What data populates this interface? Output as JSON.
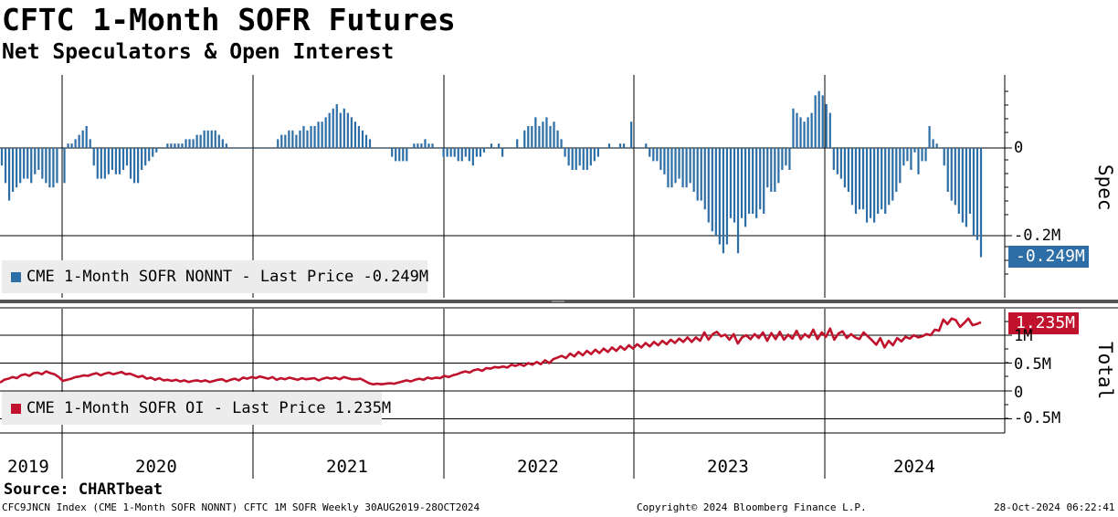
{
  "header": {
    "title": "CFTC 1-Month SOFR Futures",
    "subtitle": "Net Speculators & Open Interest"
  },
  "footer": {
    "source": "Source: CHARTbeat",
    "ticker_info": "CFC9JNCN Index (CME 1-Month SOFR NONNT) CFTC 1M SOFR  Weekly 30AUG2019-28OCT2024",
    "copyright": "Copyright© 2024 Bloomberg Finance L.P.",
    "timestamp": "28-Oct-2024 06:22:41"
  },
  "colors": {
    "spec": "#2e6ea6",
    "oi": "#c0122c"
  },
  "chart_data": [
    {
      "type": "bar",
      "panel": "top",
      "series_name": "CME 1-Month SOFR NONNT",
      "legend_label": "CME 1-Month SOFR NONNT - Last Price -0.249M",
      "last_value_label": "-0.249M",
      "ylabel": "Spec",
      "yticks": [
        0,
        -0.2
      ],
      "ytick_labels": [
        "0",
        "-0.2M"
      ],
      "ylim": [
        -0.35,
        0.17
      ],
      "x_start": 2019.66,
      "x_end": 2024.82,
      "unit": "M",
      "values": [
        -0.04,
        -0.08,
        -0.12,
        -0.1,
        -0.09,
        -0.08,
        -0.07,
        -0.07,
        -0.08,
        -0.06,
        -0.05,
        -0.07,
        -0.08,
        -0.09,
        -0.09,
        -0.08,
        0.0,
        -0.08,
        0.01,
        0.01,
        0.02,
        0.03,
        0.04,
        0.05,
        0.02,
        -0.04,
        -0.07,
        -0.07,
        -0.07,
        -0.06,
        -0.05,
        -0.06,
        -0.06,
        -0.05,
        -0.04,
        -0.07,
        -0.08,
        -0.08,
        -0.05,
        -0.04,
        -0.03,
        -0.02,
        -0.01,
        0.0,
        0.0,
        0.01,
        0.01,
        0.01,
        0.01,
        0.01,
        0.02,
        0.02,
        0.02,
        0.03,
        0.03,
        0.04,
        0.04,
        0.04,
        0.04,
        0.03,
        0.02,
        0.01,
        0.0,
        0.0,
        0.0,
        0.0,
        0.0,
        0.0,
        0.0,
        0.0,
        0.0,
        0.0,
        0.0,
        0.0,
        0.0,
        0.02,
        0.03,
        0.03,
        0.04,
        0.04,
        0.03,
        0.04,
        0.05,
        0.04,
        0.05,
        0.05,
        0.06,
        0.06,
        0.07,
        0.08,
        0.09,
        0.1,
        0.08,
        0.09,
        0.08,
        0.07,
        0.06,
        0.05,
        0.04,
        0.03,
        0.02,
        0.0,
        0.0,
        0.0,
        0.0,
        0.0,
        -0.02,
        -0.03,
        -0.03,
        -0.03,
        -0.03,
        0.0,
        0.01,
        0.01,
        0.01,
        0.02,
        0.01,
        0.01,
        0.0,
        0.0,
        -0.02,
        -0.02,
        -0.02,
        -0.02,
        -0.03,
        -0.03,
        -0.02,
        -0.03,
        -0.04,
        -0.02,
        -0.02,
        -0.01,
        0.0,
        0.01,
        0.0,
        0.01,
        -0.02,
        0.0,
        0.0,
        0.0,
        0.02,
        0.0,
        0.04,
        0.05,
        0.05,
        0.07,
        0.05,
        0.06,
        0.07,
        0.05,
        0.06,
        0.04,
        0.02,
        -0.02,
        -0.04,
        -0.05,
        -0.05,
        -0.04,
        -0.05,
        -0.05,
        -0.04,
        -0.03,
        -0.02,
        0.0,
        0.0,
        0.01,
        0.0,
        0.0,
        0.01,
        0.01,
        0.0,
        0.06,
        0.0,
        0.0,
        0.0,
        0.01,
        -0.02,
        -0.03,
        -0.03,
        -0.05,
        -0.06,
        -0.09,
        -0.09,
        -0.08,
        -0.07,
        -0.09,
        -0.09,
        -0.08,
        -0.1,
        -0.12,
        -0.12,
        -0.14,
        -0.17,
        -0.19,
        -0.2,
        -0.22,
        -0.24,
        -0.22,
        -0.16,
        -0.17,
        -0.24,
        -0.16,
        -0.18,
        -0.15,
        -0.15,
        -0.16,
        -0.14,
        -0.15,
        -0.09,
        -0.1,
        -0.1,
        -0.08,
        -0.05,
        -0.04,
        -0.05,
        0.09,
        0.08,
        0.07,
        0.06,
        0.07,
        0.08,
        0.12,
        0.13,
        0.12,
        0.1,
        0.08,
        -0.05,
        -0.06,
        -0.07,
        -0.09,
        -0.1,
        -0.13,
        -0.15,
        -0.14,
        -0.14,
        -0.17,
        -0.16,
        -0.17,
        -0.15,
        -0.14,
        -0.15,
        -0.13,
        -0.12,
        -0.1,
        -0.08,
        -0.04,
        -0.03,
        -0.05,
        -0.01,
        -0.06,
        -0.03,
        -0.03,
        0.05,
        0.02,
        0.01,
        0.0,
        -0.04,
        -0.1,
        -0.12,
        -0.13,
        -0.15,
        -0.17,
        -0.18,
        -0.15,
        -0.2,
        -0.21,
        -0.249
      ]
    },
    {
      "type": "line",
      "panel": "bottom",
      "series_name": "CME 1-Month SOFR OI",
      "legend_label": "CME 1-Month SOFR OI - Last Price 1.235M",
      "last_value_label": "1.235M",
      "ylabel": "Total",
      "yticks": [
        1.0,
        0.5,
        0,
        -0.5
      ],
      "ytick_labels": [
        "1M",
        "0.5M",
        "0",
        "-0.5M"
      ],
      "ylim": [
        -0.72,
        1.55
      ],
      "x_start": 2019.66,
      "x_end": 2024.82,
      "unit": "M",
      "values": [
        0.15,
        0.2,
        0.22,
        0.25,
        0.23,
        0.28,
        0.3,
        0.27,
        0.32,
        0.33,
        0.3,
        0.35,
        0.32,
        0.3,
        0.25,
        0.18,
        0.2,
        0.22,
        0.25,
        0.26,
        0.28,
        0.27,
        0.3,
        0.32,
        0.28,
        0.31,
        0.33,
        0.3,
        0.32,
        0.34,
        0.3,
        0.31,
        0.28,
        0.25,
        0.27,
        0.22,
        0.24,
        0.2,
        0.23,
        0.19,
        0.2,
        0.18,
        0.2,
        0.17,
        0.19,
        0.16,
        0.18,
        0.19,
        0.17,
        0.19,
        0.16,
        0.18,
        0.2,
        0.21,
        0.17,
        0.2,
        0.22,
        0.19,
        0.24,
        0.22,
        0.25,
        0.23,
        0.26,
        0.24,
        0.22,
        0.25,
        0.2,
        0.23,
        0.21,
        0.24,
        0.22,
        0.2,
        0.23,
        0.21,
        0.22,
        0.23,
        0.19,
        0.22,
        0.24,
        0.22,
        0.24,
        0.21,
        0.25,
        0.23,
        0.21,
        0.21,
        0.22,
        0.18,
        0.14,
        0.12,
        0.13,
        0.12,
        0.13,
        0.14,
        0.13,
        0.15,
        0.17,
        0.19,
        0.17,
        0.2,
        0.22,
        0.2,
        0.24,
        0.22,
        0.24,
        0.23,
        0.27,
        0.25,
        0.28,
        0.3,
        0.33,
        0.35,
        0.33,
        0.37,
        0.39,
        0.36,
        0.41,
        0.4,
        0.43,
        0.42,
        0.44,
        0.42,
        0.47,
        0.45,
        0.48,
        0.45,
        0.5,
        0.47,
        0.52,
        0.48,
        0.55,
        0.5,
        0.57,
        0.6,
        0.63,
        0.59,
        0.67,
        0.62,
        0.7,
        0.64,
        0.72,
        0.66,
        0.74,
        0.68,
        0.76,
        0.7,
        0.78,
        0.72,
        0.8,
        0.74,
        0.82,
        0.76,
        0.84,
        0.78,
        0.86,
        0.8,
        0.88,
        0.82,
        0.9,
        0.84,
        0.92,
        0.86,
        0.94,
        0.88,
        0.96,
        0.88,
        0.96,
        0.9,
        1.05,
        0.92,
        1.02,
        1.06,
        0.98,
        1.01,
        0.92,
        1.02,
        0.85,
        0.96,
        1.0,
        0.93,
        1.02,
        0.95,
        1.05,
        0.9,
        1.04,
        0.93,
        1.06,
        0.92,
        1.01,
        0.94,
        1.08,
        0.93,
        1.02,
        0.96,
        1.1,
        0.93,
        1.05,
        0.97,
        1.12,
        0.92,
        1.03,
        1.07,
        0.95,
        1.02,
        0.96,
        0.93,
        1.05,
        0.98,
        0.91,
        0.83,
        0.95,
        0.78,
        0.9,
        0.82,
        0.95,
        0.89,
        0.97,
        0.94,
        1.0,
        0.96,
        0.98,
        1.02,
        1.0,
        1.1,
        1.08,
        1.28,
        1.2,
        1.3,
        1.27,
        1.15,
        1.22,
        1.3,
        1.18,
        1.2,
        1.235
      ]
    }
  ],
  "x_axis": {
    "years": [
      "2019",
      "2020",
      "2021",
      "2022",
      "2023",
      "2024"
    ]
  }
}
